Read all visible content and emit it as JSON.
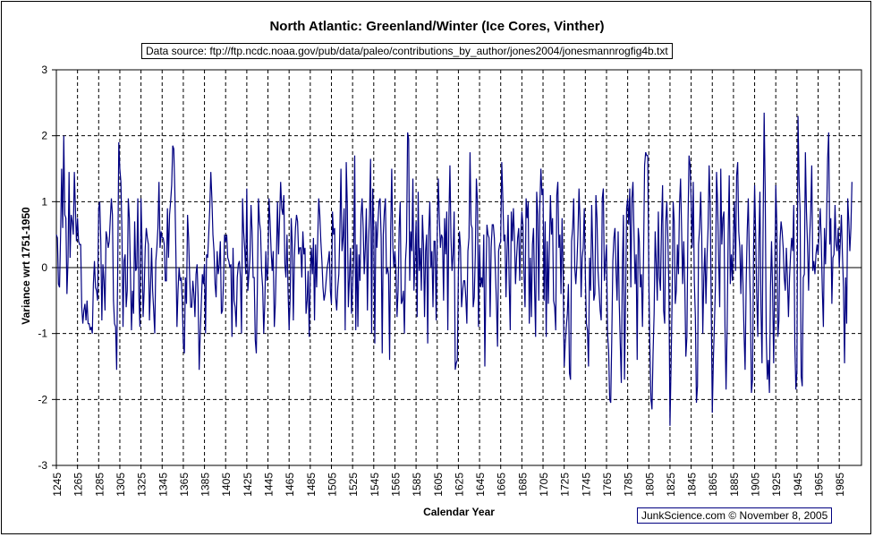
{
  "chart_data": {
    "type": "line",
    "title": "North Atlantic: Greenland/Winter (Ice Cores, Vinther)",
    "subtitle": "Data source: ftp://ftp.ncdc.noaa.gov/pub/data/paleo/contributions_by_author/jones2004/jonesmannrogfig4b.txt",
    "xlabel": "Calendar Year",
    "ylabel": "Variance wrt 1751-1950",
    "credit": "JunkScience.com ©  November 8, 2005",
    "xlim": [
      1245,
      2006
    ],
    "ylim": [
      -3,
      3
    ],
    "grid": true,
    "legend": "none",
    "series_color": "#000080",
    "y_ticks": [
      "3",
      "2",
      "1",
      "0",
      "-1",
      "-2",
      "-3"
    ],
    "x_ticks": [
      "1245",
      "1265",
      "1285",
      "1305",
      "1325",
      "1345",
      "1365",
      "1385",
      "1405",
      "1425",
      "1445",
      "1465",
      "1485",
      "1505",
      "1525",
      "1545",
      "1565",
      "1585",
      "1605",
      "1625",
      "1645",
      "1665",
      "1685",
      "1705",
      "1725",
      "1745",
      "1765",
      "1785",
      "1805",
      "1825",
      "1845",
      "1865",
      "1885",
      "1905",
      "1925",
      "1945",
      "1965",
      "1985"
    ],
    "series": [
      {
        "name": "Greenland winter",
        "x_start": 1245,
        "x_step": 1,
        "values": [
          0.5,
          0.45,
          -0.25,
          -0.3,
          0.5,
          1.5,
          0.6,
          2.0,
          0.8,
          0.75,
          -0.4,
          0.1,
          1.45,
          0.15,
          0.8,
          0.7,
          0.5,
          1.45,
          0.9,
          0.4,
          0.75,
          0.4,
          0.35,
          0.35,
          -0.6,
          -0.85,
          -0.65,
          -0.55,
          -0.8,
          -0.5,
          -0.85,
          -0.85,
          -0.95,
          -0.9,
          -1.0,
          -0.25,
          0.1,
          -0.3,
          -0.35,
          -0.5,
          0.9,
          1.0,
          0.4,
          -0.8,
          0.05,
          -0.2,
          -0.65,
          0.55,
          0.45,
          0.3,
          0.4,
          0.75,
          1.05,
          0.8,
          -0.5,
          -0.85,
          -0.9,
          -1.55,
          0.0,
          1.9,
          1.5,
          1.3,
          0.55,
          -0.9,
          0.1,
          0.2,
          -0.6,
          -0.35,
          1.05,
          0.75,
          -0.05,
          -0.95,
          -0.35,
          -0.7,
          0.7,
          -0.05,
          0.0,
          1.05,
          -0.45,
          -0.9,
          1.05,
          0.35,
          -0.75,
          -0.35,
          0.3,
          0.6,
          0.45,
          0.35,
          -0.8,
          -0.3,
          0.3,
          -0.35,
          -0.65,
          -1.0,
          0.1,
          0.3,
          0.6,
          1.3,
          0.3,
          0.55,
          0.45,
          0.45,
          0.35,
          -0.2,
          -0.2,
          0.9,
          0.15,
          0.8,
          1.0,
          1.25,
          1.85,
          1.8,
          1.15,
          0.2,
          -0.9,
          -0.35,
          0.0,
          -0.2,
          -0.15,
          -0.5,
          -1.15,
          -1.3,
          -0.15,
          -0.55,
          0.8,
          0.45,
          -0.15,
          -0.6,
          -0.6,
          -0.2,
          -0.4,
          -0.75,
          -0.1,
          0.05,
          -0.45,
          -1.55,
          -1.0,
          -0.55,
          -0.1,
          -0.25,
          0.05,
          -1.0,
          0.2,
          0.15,
          0.5,
          0.9,
          1.45,
          1.05,
          0.5,
          0.25,
          -0.25,
          -0.45,
          0.25,
          -0.1,
          0.05,
          0.4,
          -0.7,
          -0.65,
          -0.2,
          0.5,
          0.4,
          0.5,
          0.15,
          0.1,
          0.0,
          0.05,
          -1.05,
          0.3,
          -0.5,
          -0.6,
          -0.9,
          -0.15,
          0.05,
          0.1,
          -0.15,
          -1.0,
          1.05,
          0.55,
          0.3,
          -0.1,
          1.2,
          -0.35,
          -0.1,
          0.15,
          0.95,
          0.55,
          -0.15,
          -0.15,
          -1.1,
          -1.3,
          -0.3,
          1.05,
          0.7,
          0.55,
          -0.05,
          -0.3,
          -1.0,
          -0.55,
          0.25,
          -0.2,
          0.0,
          1.05,
          0.7,
          0.25,
          -0.05,
          0.25,
          -0.9,
          -0.55,
          0.15,
          1.0,
          0.2,
          0.75,
          1.3,
          0.9,
          0.8,
          1.1,
          0.05,
          -0.15,
          0.5,
          -0.35,
          -0.95,
          -0.45,
          0.75,
          0.35,
          -0.8,
          0.15,
          0.6,
          0.8,
          0.7,
          0.2,
          0.3,
          0.3,
          -0.15,
          0.55,
          0.2,
          0.3,
          -0.7,
          -0.5,
          -0.05,
          -1.05,
          -0.15,
          0.3,
          -0.1,
          0.45,
          -0.8,
          0.35,
          -0.3,
          0.4,
          1.05,
          0.8,
          0.4,
          0.1,
          -0.3,
          -0.5,
          -0.4,
          -0.2,
          0.0,
          0.1,
          0.25,
          -0.35,
          -0.55,
          0.85,
          0.5,
          0.6,
          -0.45,
          -0.65,
          -0.3,
          -0.1,
          0.6,
          1.5,
          0.25,
          0.45,
          0.9,
          -0.95,
          1.6,
          0.95,
          -0.6,
          -0.15,
          0.3,
          -0.7,
          -0.3,
          0.15,
          1.7,
          -0.95,
          0.35,
          -0.9,
          0.2,
          -0.2,
          0.8,
          1.05,
          0.6,
          -0.1,
          0.3,
          0.9,
          -0.65,
          0.35,
          0.8,
          1.65,
          -1.0,
          1.2,
          0.55,
          -1.15,
          0.7,
          0.3,
          0.7,
          1.0,
          1.05,
          0.45,
          -1.3,
          0.5,
          0.85,
          1.05,
          -0.1,
          0.0,
          -0.1,
          -1.4,
          0.55,
          1.5,
          0.35,
          0.0,
          0.25,
          -0.05,
          -0.75,
          -0.35,
          0.6,
          1.0,
          -0.55,
          -0.5,
          -0.35,
          -1.0,
          0.1,
          0.4,
          2.05,
          1.95,
          -0.2,
          0.55,
          0.25,
          1.35,
          -0.35,
          0.15,
          0.7,
          -0.75,
          1.15,
          -0.05,
          0.3,
          -0.35,
          0.8,
          0.35,
          -0.75,
          0.25,
          0.5,
          -1.15,
          0.55,
          1.0,
          0.0,
          0.25,
          -0.6,
          0.4,
          0.4,
          -0.8,
          0.5,
          1.35,
          0.75,
          0.3,
          0.5,
          0.45,
          -0.5,
          0.75,
          0.2,
          0.85,
          -0.95,
          0.7,
          1.55,
          0.45,
          -0.05,
          0.2,
          0.85,
          -1.55,
          -1.45,
          -1.4,
          -0.05,
          0.55,
          0.3,
          -0.6,
          -0.35,
          -0.2,
          -0.2,
          -0.45,
          -0.85,
          0.25,
          0.45,
          1.75,
          0.65,
          0.6,
          -0.6,
          -0.45,
          0.2,
          1.35,
          1.0,
          -0.9,
          0.35,
          -0.3,
          -0.15,
          -0.3,
          0.5,
          -1.5,
          -0.2,
          0.65,
          0.5,
          0.45,
          -0.75,
          0.3,
          0.65,
          0.65,
          0.45,
          -0.05,
          -0.55,
          -1.2,
          0.25,
          0.35,
          0.4,
          1.6,
          1.05,
          0.4,
          0.5,
          -0.45,
          0.25,
          0.8,
          -0.25,
          -0.95,
          0.85,
          0.4,
          0.9,
          0.45,
          -0.25,
          0.15,
          0.45,
          0.6,
          -0.2,
          0.5,
          0.85,
          0.65,
          -0.1,
          -0.6,
          1.05,
          0.75,
          1.0,
          -0.85,
          0.15,
          -0.75,
          0.35,
          0.6,
          -0.3,
          -1.05,
          1.15,
          0.8,
          -0.5,
          0.95,
          1.5,
          1.1,
          1.2,
          -0.5,
          0.7,
          -1.05,
          0.4,
          -0.55,
          0.3,
          1.1,
          0.5,
          0.75,
          -0.5,
          -0.6,
          -0.95,
          1.1,
          1.3,
          0.3,
          0.5,
          -0.4,
          0.75,
          -0.1,
          -1.5,
          -1.15,
          -0.9,
          -0.7,
          -0.25,
          -1.6,
          -1.7,
          0.4,
          0.6,
          1.05,
          0.0,
          -0.25,
          0.05,
          0.5,
          1.2,
          0.7,
          -0.45,
          0.15,
          0.3,
          0.9,
          -0.1,
          -0.85,
          -0.95,
          -1.5,
          0.15,
          -0.35,
          0.95,
          0.25,
          -0.5,
          -0.4,
          1.1,
          0.75,
          -0.05,
          -0.35,
          -0.65,
          -0.8,
          1.05,
          1.2,
          -0.2,
          0.1,
          0.35,
          -1.0,
          -1.25,
          -2.0,
          -2.05,
          -1.05,
          0.1,
          0.45,
          0.6,
          -0.05,
          -0.5,
          0.55,
          -0.5,
          -1.15,
          -1.75,
          0.0,
          0.8,
          -1.7,
          -0.55,
          0.9,
          1.05,
          0.65,
          1.2,
          -0.3,
          1.05,
          1.3,
          0.5,
          -0.25,
          0.2,
          -1.4,
          0.6,
          0.4,
          -0.3,
          -0.1,
          -0.9,
          0.15,
          1.55,
          1.75,
          1.7,
          1.7,
          -0.15,
          -1.2,
          -2.0,
          -2.15,
          -1.3,
          -0.7,
          0.55,
          0.05,
          -0.5,
          0.85,
          -0.15,
          -0.35,
          0.65,
          1.25,
          -0.65,
          -0.85,
          0.7,
          1.0,
          0.45,
          -0.35,
          -2.4,
          -1.5,
          -0.5,
          1.0,
          0.7,
          -0.55,
          -0.35,
          0.35,
          -0.1,
          0.95,
          1.35,
          0.55,
          -0.25,
          0.4,
          -0.25,
          -1.35,
          -1.05,
          0.65,
          1.7,
          1.55,
          1.0,
          0.3,
          1.3,
          -0.2,
          -0.75,
          -2.05,
          -1.8,
          0.35,
          0.6,
          1.15,
          0.5,
          -1.0,
          -0.15,
          0.3,
          -0.55,
          0.15,
          0.6,
          1.55,
          0.95,
          -0.6,
          -2.2,
          -1.4,
          -0.85,
          -0.25,
          1.45,
          1.0,
          0.1,
          -0.6,
          1.5,
          0.35,
          0.75,
          0.85,
          -0.9,
          -1.85,
          -0.95,
          0.5,
          1.4,
          -0.25,
          0.2,
          -0.2,
          0.5,
          1.0,
          -0.05,
          1.4,
          1.6,
          0.55,
          0.3,
          -0.4,
          0.35,
          -0.25,
          -1.0,
          -1.55,
          -0.25,
          0.55,
          1.05,
          0.15,
          -0.55,
          -1.9,
          -1.7,
          0.25,
          1.25,
          0.5,
          -0.45,
          -1.05,
          0.35,
          1.15,
          -0.6,
          -1.45,
          0.6,
          2.35,
          1.15,
          -1.05,
          -1.7,
          -1.4,
          -1.9,
          -0.3,
          0.4,
          -0.35,
          -1.45,
          -0.2,
          1.25,
          0.65,
          -1.05,
          -0.8,
          0.4,
          0.7,
          0.55,
          0.3,
          -0.15,
          -0.35,
          0.3,
          -0.15,
          -0.75,
          -0.15,
          0.2,
          0.45,
          0.25,
          0.95,
          -1.15,
          -1.85,
          -1.55,
          2.3,
          1.35,
          0.85,
          -1.65,
          -1.8,
          -0.15,
          -0.1,
          1.75,
          0.85,
          0.35,
          -0.35,
          0.45,
          0.85,
          1.55,
          -0.05,
          0.1,
          -0.1,
          0.2,
          0.35,
          0.2,
          0.55,
          0.9,
          0.4,
          -0.35,
          -0.9,
          0.6,
          0.05,
          0.7,
          1.65,
          2.05,
          0.35,
          0.75,
          -0.55,
          0.15,
          0.2,
          0.95,
          0.35,
          0.25,
          0.6,
          0.0,
          0.4,
          0.8,
          0.2,
          -0.3,
          -1.45,
          -0.15,
          -0.85,
          1.05,
          0.7,
          0.25,
          0.6,
          1.3
        ]
      }
    ]
  }
}
